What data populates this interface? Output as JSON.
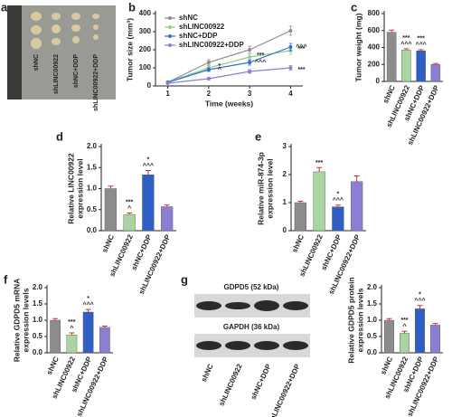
{
  "photo": {
    "panel": "a",
    "labels": [
      "shNC",
      "shLINC00922",
      "shNC+DDP",
      "shLINC00922+DDP"
    ]
  },
  "blot": {
    "panel": "g",
    "labels": [
      "GDPD5 (52 kDa)",
      "GAPDH (36 kDa)"
    ],
    "categories": [
      "shNC",
      "shLINC00922",
      "shNC+DDP",
      "shLINC00922+DDP"
    ]
  },
  "chart_data": [
    {
      "type": "line",
      "panel": "b",
      "xlabel": "Time (weeks)",
      "ylabel": [
        "Tumor size (mm³)"
      ],
      "x": [
        1,
        2,
        3,
        4
      ],
      "xlim": [
        0.7,
        4.3
      ],
      "xticks": [
        1,
        2,
        3,
        4
      ],
      "ylim": [
        0,
        400
      ],
      "yticks": [
        0,
        100,
        200,
        300,
        400
      ],
      "legend": "top-left",
      "series": [
        {
          "name": "shNC",
          "color": "#8c8c8c",
          "values": [
            20,
            130,
            200,
            305
          ],
          "errors": [
            5,
            15,
            20,
            25
          ],
          "significance": [
            null,
            null,
            null,
            null
          ]
        },
        {
          "name": "shLINC00922",
          "color": "#8fcf8a",
          "values": [
            20,
            100,
            160,
            195
          ],
          "errors": [
            4,
            12,
            18,
            20
          ],
          "significance": [
            null,
            "*",
            "***",
            "***"
          ]
        },
        {
          "name": "shNC+DDP",
          "color": "#2f6fd0",
          "values": [
            20,
            90,
            130,
            215
          ],
          "errors": [
            4,
            10,
            15,
            20
          ],
          "significance": [
            null,
            "^",
            "^^^",
            "^^^"
          ]
        },
        {
          "name": "shLINC00922+DDP",
          "color": "#8a7fd0",
          "values": [
            15,
            40,
            80,
            100
          ],
          "errors": [
            3,
            6,
            10,
            12
          ],
          "significance": [
            null,
            null,
            null,
            "***"
          ]
        }
      ]
    },
    {
      "type": "bar",
      "panel": "c",
      "ylabel": [
        "Tumor weight (mg)"
      ],
      "categories": [
        "shNC",
        "shLINC00922",
        "shNC+DDP",
        "shLINC00922+DDP"
      ],
      "values": [
        580,
        370,
        360,
        200
      ],
      "errors": [
        25,
        15,
        15,
        12
      ],
      "colors": [
        "#8c8c8c",
        "#a8d5a0",
        "#2f5fc4",
        "#8a7fd0"
      ],
      "ylim": [
        0,
        800
      ],
      "yticks": [
        0,
        200,
        400,
        600,
        800
      ],
      "significance": [
        null,
        [
          "***",
          "^^^"
        ],
        [
          "***",
          "^^^"
        ],
        null
      ]
    },
    {
      "type": "bar",
      "panel": "d",
      "ylabel": [
        "Relative LINC00922",
        "expression level"
      ],
      "categories": [
        "shNC",
        "shLINC00922",
        "shNC+DDP",
        "shLINC00922+DDP"
      ],
      "values": [
        1.0,
        0.38,
        1.33,
        0.57
      ],
      "errors": [
        0.06,
        0.04,
        0.1,
        0.04
      ],
      "colors": [
        "#8c8c8c",
        "#a8d5a0",
        "#2f5fc4",
        "#8a7fd0"
      ],
      "ylim": [
        0,
        2
      ],
      "yticks": [
        {
          "value": 0,
          "label": "0.0"
        },
        {
          "value": 0.5,
          "label": "0.5"
        },
        {
          "value": 1,
          "label": "1.0"
        },
        {
          "value": 1.5,
          "label": "1.5"
        },
        {
          "value": 2,
          "label": "2.0"
        }
      ],
      "significance": [
        null,
        [
          "***",
          "^"
        ],
        [
          "*",
          "^^^"
        ],
        null
      ]
    },
    {
      "type": "bar",
      "panel": "e",
      "ylabel": [
        "Relative miR-874-3p",
        "expression level"
      ],
      "categories": [
        "shNC",
        "shLINC00922",
        "shNC+DDP",
        "shLINC00922+DDP"
      ],
      "values": [
        1.0,
        2.1,
        0.85,
        1.75
      ],
      "errors": [
        0.05,
        0.15,
        0.06,
        0.2
      ],
      "colors": [
        "#8c8c8c",
        "#a8d5a0",
        "#2f5fc4",
        "#8a7fd0"
      ],
      "ylim": [
        0,
        3
      ],
      "yticks": [
        0,
        1,
        2,
        3
      ],
      "significance": [
        null,
        [
          "***"
        ],
        [
          "*",
          "^^^"
        ],
        null
      ]
    },
    {
      "type": "bar",
      "panel": "f",
      "ylabel": [
        "Relative GDPD5 mRNA",
        "expression levels"
      ],
      "categories": [
        "shNC",
        "shLINC00922",
        "shNC+DDP",
        "shLINC00922+DDP"
      ],
      "values": [
        1.0,
        0.55,
        1.25,
        0.78
      ],
      "errors": [
        0.05,
        0.06,
        0.08,
        0.04
      ],
      "colors": [
        "#8c8c8c",
        "#a8d5a0",
        "#2f5fc4",
        "#8a7fd0"
      ],
      "ylim": [
        0,
        2
      ],
      "yticks": [
        {
          "value": 0,
          "label": "0.0"
        },
        {
          "value": 0.5,
          "label": "0.5"
        },
        {
          "value": 1,
          "label": "1.0"
        },
        {
          "value": 1.5,
          "label": "1.5"
        },
        {
          "value": 2,
          "label": "2.0"
        }
      ],
      "significance": [
        null,
        [
          "***",
          "^"
        ],
        [
          "*",
          "^^^"
        ],
        null
      ]
    },
    {
      "type": "bar",
      "ylabel": [
        "Relative GDPD5 protein",
        "expression levels"
      ],
      "categories": [
        "shNC",
        "shLINC00922",
        "shNC+DDP",
        "shLINC00922+DDP"
      ],
      "values": [
        1.0,
        0.6,
        1.35,
        0.85
      ],
      "errors": [
        0.05,
        0.06,
        0.1,
        0.05
      ],
      "colors": [
        "#8c8c8c",
        "#a8d5a0",
        "#2f5fc4",
        "#8a7fd0"
      ],
      "ylim": [
        0,
        2
      ],
      "yticks": [
        {
          "value": 0,
          "label": "0.0"
        },
        {
          "value": 0.5,
          "label": "0.5"
        },
        {
          "value": 1,
          "label": "1.0"
        },
        {
          "value": 1.5,
          "label": "1.5"
        },
        {
          "value": 2,
          "label": "2.0"
        }
      ],
      "significance": [
        null,
        [
          "***",
          "^"
        ],
        [
          "*",
          "^^^"
        ],
        null
      ]
    }
  ]
}
